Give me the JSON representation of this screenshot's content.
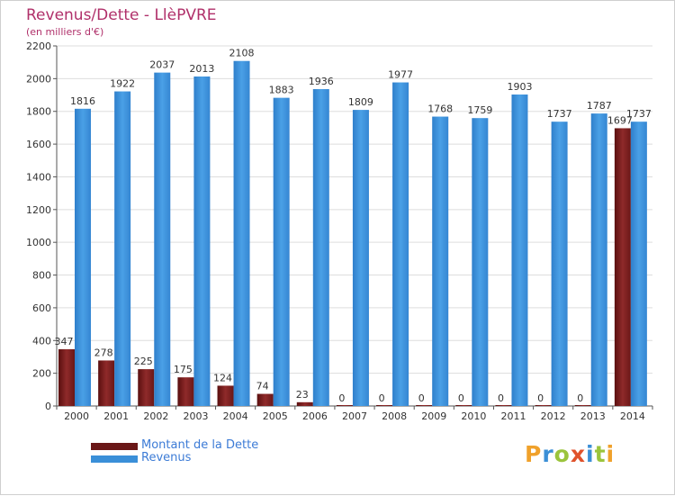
{
  "header": {
    "title": "Revenus/Dette - LlèPVRE",
    "subtitle": "(en milliers d'€)"
  },
  "legend": {
    "debt_label": "Montant de la Dette",
    "revenue_label": "Revenus"
  },
  "logo": {
    "letters": [
      "P",
      "r",
      "o",
      "x",
      "i",
      "t",
      "i"
    ],
    "colors": [
      "#f0a12b",
      "#3b8fd6",
      "#9bc43c",
      "#e0522b",
      "#3b8fd6",
      "#9bc43c",
      "#f0a12b"
    ]
  },
  "colors": {
    "debt": "#7a1d1d",
    "revenue": "#3a8fd8",
    "text": "#333333",
    "grid": "#dddddd"
  },
  "chart_data": {
    "type": "bar",
    "title": "Revenus/Dette - LlèPVRE",
    "ylabel": "(en milliers d'€)",
    "xlabel": "",
    "ylim": [
      0,
      2200
    ],
    "yticks": [
      0,
      200,
      400,
      600,
      800,
      1000,
      1200,
      1400,
      1600,
      1800,
      2000,
      2200
    ],
    "categories": [
      "2000",
      "2001",
      "2002",
      "2003",
      "2004",
      "2005",
      "2006",
      "2007",
      "2008",
      "2009",
      "2010",
      "2011",
      "2012",
      "2013",
      "2014"
    ],
    "series": [
      {
        "name": "Montant de la Dette",
        "values": [
          347,
          278,
          225,
          175,
          124,
          74,
          23,
          0,
          0,
          0,
          0,
          0,
          0,
          0,
          1697
        ],
        "labels": [
          "347",
          "278",
          "225",
          "175",
          "124",
          "74",
          "23",
          "0",
          "0",
          "0",
          "0",
          "0",
          "0",
          "0",
          "1697"
        ]
      },
      {
        "name": "Revenus",
        "values": [
          1816,
          1922,
          2037,
          2013,
          2108,
          1883,
          1936,
          1809,
          1977,
          1768,
          1759,
          1903,
          1737,
          1787,
          1737
        ],
        "labels": [
          "1816",
          "1922",
          "2037",
          "2013",
          "2108",
          "1883",
          "1936",
          "1809",
          "1977",
          "1768",
          "1759",
          "1903",
          "1737",
          "1787",
          "1737"
        ]
      }
    ],
    "grid": true,
    "legend": "bottom-left"
  }
}
